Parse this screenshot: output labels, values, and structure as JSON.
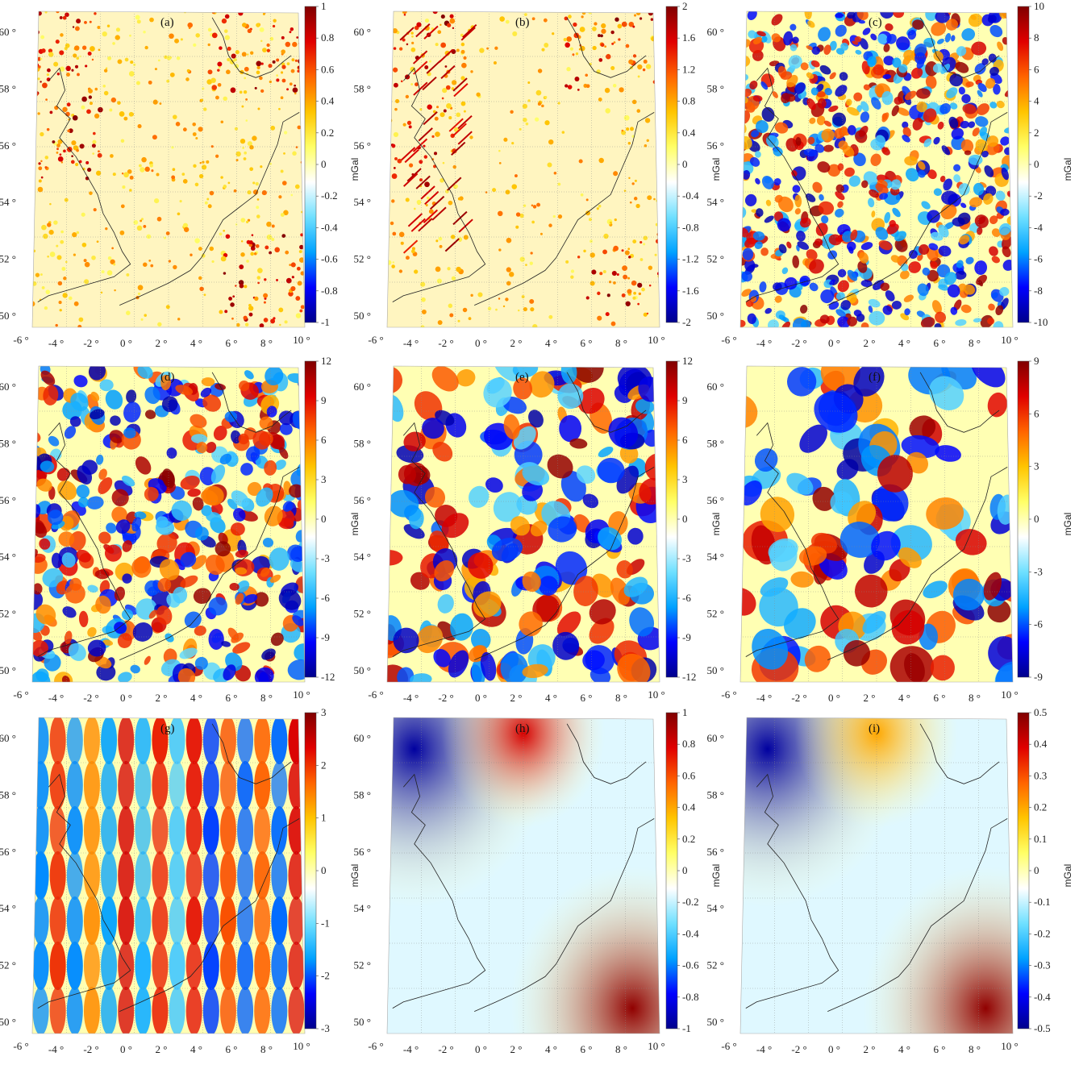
{
  "figure": {
    "rows": 3,
    "cols": 3,
    "colormap": [
      "#00008b",
      "#0000ff",
      "#00a2ff",
      "#6fe0ff",
      "#ffffff",
      "#ffff66",
      "#ffc400",
      "#ff6400",
      "#e00000",
      "#800000"
    ],
    "panels": [
      {
        "label": "(a)",
        "unit": "mGal",
        "ticks": [
          "1",
          "0.8",
          "0.6",
          "0.4",
          "0.2",
          "0",
          "-0.2",
          "-0.4",
          "-0.6",
          "-0.8",
          "-1"
        ],
        "style": "noise-pos"
      },
      {
        "label": "(b)",
        "unit": "mGal",
        "ticks": [
          "2",
          "1.6",
          "1.2",
          "0.8",
          "0.4",
          "0",
          "-0.4",
          "-0.8",
          "-1.2",
          "-1.6",
          "-2"
        ],
        "style": "noise-ridge"
      },
      {
        "label": "(c)",
        "unit": "mGal",
        "ticks": [
          "10",
          "8",
          "6",
          "4",
          "2",
          "0",
          "-2",
          "-4",
          "-6",
          "-8",
          "-10"
        ],
        "style": "hf"
      },
      {
        "label": "(d)",
        "unit": "mGal",
        "ticks": [
          "12",
          "9",
          "6",
          "3",
          "0",
          "-3",
          "-6",
          "-9",
          "-12"
        ],
        "style": "mf1"
      },
      {
        "label": "(e)",
        "unit": "mGal",
        "ticks": [
          "12",
          "9",
          "6",
          "3",
          "0",
          "-3",
          "-6",
          "-9",
          "-12"
        ],
        "style": "mf2"
      },
      {
        "label": "(f)",
        "unit": "mGal",
        "ticks": [
          "9",
          "6",
          "3",
          "0",
          "-3",
          "-6",
          "-9"
        ],
        "style": "mf3"
      },
      {
        "label": "(g)",
        "unit": "mGal",
        "ticks": [
          "3",
          "2",
          "1",
          "0",
          "-1",
          "-2",
          "-3"
        ],
        "style": "stripes"
      },
      {
        "label": "(h)",
        "unit": "mGal",
        "ticks": [
          "1",
          "0.8",
          "0.6",
          "0.4",
          "0.2",
          "0",
          "-0.2",
          "-0.4",
          "-0.6",
          "-0.8",
          "-1"
        ],
        "style": "smooth1"
      },
      {
        "label": "(i)",
        "unit": "mGal",
        "ticks": [
          "0.5",
          "0.4",
          "0.3",
          "0.2",
          "0.1",
          "0",
          "-0.1",
          "-0.2",
          "-0.3",
          "-0.4",
          "-0.5"
        ],
        "style": "smooth2"
      }
    ],
    "lat_labels": [
      "60",
      "58",
      "56",
      "54",
      "52",
      "50"
    ],
    "lon_labels": [
      "-6",
      "-4",
      "-2",
      "0",
      "2",
      "4",
      "6",
      "8",
      "10"
    ],
    "degree_symbol": "°"
  }
}
